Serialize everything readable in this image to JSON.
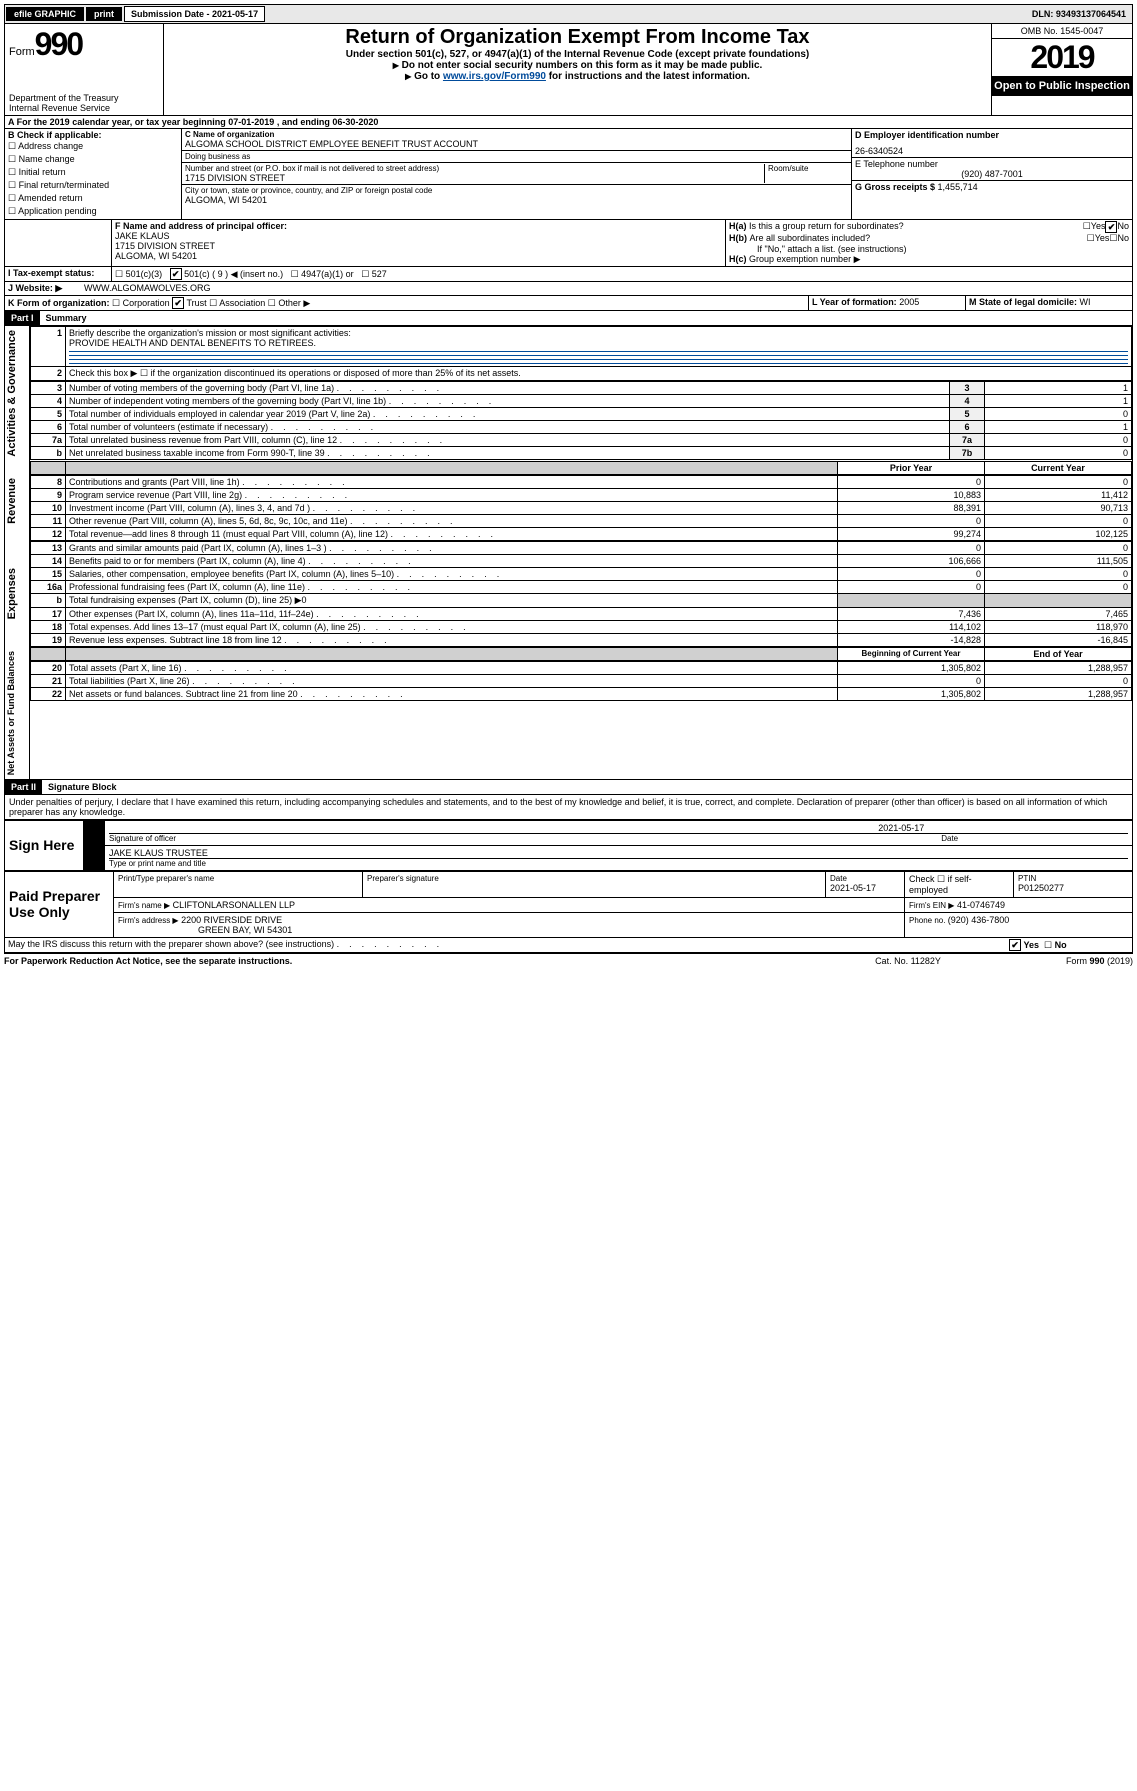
{
  "topbar": {
    "efile": "efile GRAPHIC",
    "print": "print",
    "sub_label": "Submission Date - ",
    "sub_date": "2021-05-17",
    "dln_label": "DLN: ",
    "dln": "93493137064541"
  },
  "header": {
    "form_prefix": "Form",
    "form_no": "990",
    "dept1": "Department of the Treasury",
    "dept2": "Internal Revenue Service",
    "title": "Return of Organization Exempt From Income Tax",
    "sub1": "Under section 501(c), 527, or 4947(a)(1) of the Internal Revenue Code (except private foundations)",
    "sub2": "Do not enter social security numbers on this form as it may be made public.",
    "sub3a": "Go to ",
    "sub3_link": "www.irs.gov/Form990",
    "sub3b": " for instructions and the latest information.",
    "omb": "OMB No. 1545-0047",
    "year": "2019",
    "open": "Open to Public Inspection"
  },
  "lineA": {
    "text_a": "For the 2019 calendar year, or tax year beginning ",
    "begin": "07-01-2019",
    "text_b": "   , and ending ",
    "end": "06-30-2020"
  },
  "sectionB": {
    "label": "B Check if applicable:",
    "opts": [
      "Address change",
      "Name change",
      "Initial return",
      "Final return/terminated",
      "Amended return",
      "Application pending"
    ]
  },
  "sectionC": {
    "name_label": "C Name of organization",
    "name": "ALGOMA SCHOOL DISTRICT EMPLOYEE BENEFIT TRUST ACCOUNT",
    "dba_label": "Doing business as",
    "addr_label": "Number and street (or P.O. box if mail is not delivered to street address)",
    "room_label": "Room/suite",
    "addr": "1715 DIVISION STREET",
    "city_label": "City or town, state or province, country, and ZIP or foreign postal code",
    "city": "ALGOMA, WI  54201"
  },
  "sectionD": {
    "ein_label": "D Employer identification number",
    "ein": "26-6340524",
    "phone_label": "E Telephone number",
    "phone": "(920) 487-7001",
    "gross_label": "G Gross receipts $ ",
    "gross": "1,455,714"
  },
  "sectionF": {
    "label": "F  Name and address of principal officer:",
    "name": "JAKE KLAUS",
    "addr1": "1715 DIVISION STREET",
    "addr2": "ALGOMA, WI  54201"
  },
  "sectionH": {
    "ha": "Is this a group return for subordinates?",
    "hb": "Are all subordinates included?",
    "hb2": "If \"No,\" attach a list. (see instructions)",
    "hc": "Group exemption number ▶",
    "yes": "Yes",
    "no": "No"
  },
  "taxExempt": {
    "label": "Tax-exempt status:",
    "o1": "501(c)(3)",
    "o2": "501(c) ( 9 ) ◀ (insert no.)",
    "o3": "4947(a)(1) or",
    "o4": "527"
  },
  "lineJ": {
    "label": "Website: ▶",
    "val": "WWW.ALGOMAWOLVES.ORG"
  },
  "lineK": {
    "label": "K Form of organization:",
    "opts": [
      "Corporation",
      "Trust",
      "Association",
      "Other ▶"
    ],
    "checked": 1
  },
  "lineL": {
    "label": "L Year of formation: ",
    "val": "2005"
  },
  "lineM": {
    "label": "M State of legal domicile: ",
    "val": "WI"
  },
  "part1": {
    "label": "Part I",
    "title": "Summary",
    "vtab1": "Activities & Governance",
    "vtab2": "Revenue",
    "vtab3": "Expenses",
    "vtab4": "Net Assets or Fund Balances",
    "line1_label": "Briefly describe the organization's mission or most significant activities:",
    "line1_val": "PROVIDE HEALTH AND DENTAL BENEFITS TO RETIREES.",
    "line2": "Check this box ▶ ☐  if the organization discontinued its operations or disposed of more than 25% of its net assets.",
    "col_prior": "Prior Year",
    "col_current": "Current Year",
    "col_begin": "Beginning of Current Year",
    "col_end": "End of Year",
    "rows_top": [
      {
        "n": "3",
        "t": "Number of voting members of the governing body (Part VI, line 1a)",
        "box": "3",
        "v": "1"
      },
      {
        "n": "4",
        "t": "Number of independent voting members of the governing body (Part VI, line 1b)",
        "box": "4",
        "v": "1"
      },
      {
        "n": "5",
        "t": "Total number of individuals employed in calendar year 2019 (Part V, line 2a)",
        "box": "5",
        "v": "0"
      },
      {
        "n": "6",
        "t": "Total number of volunteers (estimate if necessary)",
        "box": "6",
        "v": "1"
      },
      {
        "n": "7a",
        "t": "Total unrelated business revenue from Part VIII, column (C), line 12",
        "box": "7a",
        "v": "0"
      },
      {
        "n": " b",
        "t": "Net unrelated business taxable income from Form 990-T, line 39",
        "box": "7b",
        "v": "0"
      }
    ],
    "rows_rev": [
      {
        "n": "8",
        "t": "Contributions and grants (Part VIII, line 1h)",
        "p": "0",
        "c": "0"
      },
      {
        "n": "9",
        "t": "Program service revenue (Part VIII, line 2g)",
        "p": "10,883",
        "c": "11,412"
      },
      {
        "n": "10",
        "t": "Investment income (Part VIII, column (A), lines 3, 4, and 7d )",
        "p": "88,391",
        "c": "90,713"
      },
      {
        "n": "11",
        "t": "Other revenue (Part VIII, column (A), lines 5, 6d, 8c, 9c, 10c, and 11e)",
        "p": "0",
        "c": "0"
      },
      {
        "n": "12",
        "t": "Total revenue—add lines 8 through 11 (must equal Part VIII, column (A), line 12)",
        "p": "99,274",
        "c": "102,125"
      }
    ],
    "rows_exp": [
      {
        "n": "13",
        "t": "Grants and similar amounts paid (Part IX, column (A), lines 1–3 )",
        "p": "0",
        "c": "0"
      },
      {
        "n": "14",
        "t": "Benefits paid to or for members (Part IX, column (A), line 4)",
        "p": "106,666",
        "c": "111,505"
      },
      {
        "n": "15",
        "t": "Salaries, other compensation, employee benefits (Part IX, column (A), lines 5–10)",
        "p": "0",
        "c": "0"
      },
      {
        "n": "16a",
        "t": "Professional fundraising fees (Part IX, column (A), line 11e)",
        "p": "0",
        "c": "0"
      },
      {
        "n": "b",
        "t": "Total fundraising expenses (Part IX, column (D), line 25) ▶0",
        "p": "",
        "c": "",
        "gray": true
      },
      {
        "n": "17",
        "t": "Other expenses (Part IX, column (A), lines 11a–11d, 11f–24e)",
        "p": "7,436",
        "c": "7,465"
      },
      {
        "n": "18",
        "t": "Total expenses. Add lines 13–17 (must equal Part IX, column (A), line 25)",
        "p": "114,102",
        "c": "118,970"
      },
      {
        "n": "19",
        "t": "Revenue less expenses. Subtract line 18 from line 12",
        "p": "-14,828",
        "c": "-16,845"
      }
    ],
    "rows_net": [
      {
        "n": "20",
        "t": "Total assets (Part X, line 16)",
        "p": "1,305,802",
        "c": "1,288,957"
      },
      {
        "n": "21",
        "t": "Total liabilities (Part X, line 26)",
        "p": "0",
        "c": "0"
      },
      {
        "n": "22",
        "t": "Net assets or fund balances. Subtract line 21 from line 20",
        "p": "1,305,802",
        "c": "1,288,957"
      }
    ]
  },
  "part2": {
    "label": "Part II",
    "title": "Signature Block",
    "perjury": "Under penalties of perjury, I declare that I have examined this return, including accompanying schedules and statements, and to the best of my knowledge and belief, it is true, correct, and complete. Declaration of preparer (other than officer) is based on all information of which preparer has any knowledge.",
    "sign_here": "Sign Here",
    "sig_officer": "Signature of officer",
    "sig_date": "2021-05-17",
    "date_label": "Date",
    "officer_name": "JAKE KLAUS TRUSTEE",
    "type_name": "Type or print name and title",
    "paid": "Paid Preparer Use Only",
    "prep_name_label": "Print/Type preparer's name",
    "prep_sig_label": "Preparer's signature",
    "prep_date_label": "Date",
    "prep_date": "2021-05-17",
    "check_self": "Check ☐ if self-employed",
    "ptin_label": "PTIN",
    "ptin": "P01250277",
    "firm_name_label": "Firm's name    ▶",
    "firm_name": "CLIFTONLARSONALLEN LLP",
    "firm_ein_label": "Firm's EIN ▶",
    "firm_ein": "41-0746749",
    "firm_addr_label": "Firm's address ▶",
    "firm_addr1": "2200 RIVERSIDE DRIVE",
    "firm_addr2": "GREEN BAY, WI  54301",
    "firm_phone_label": "Phone no. ",
    "firm_phone": "(920) 436-7800",
    "discuss": "May the IRS discuss this return with the preparer shown above? (see instructions)"
  },
  "footer": {
    "left": "For Paperwork Reduction Act Notice, see the separate instructions.",
    "mid": "Cat. No. 11282Y",
    "right": "Form 990 (2019)"
  }
}
